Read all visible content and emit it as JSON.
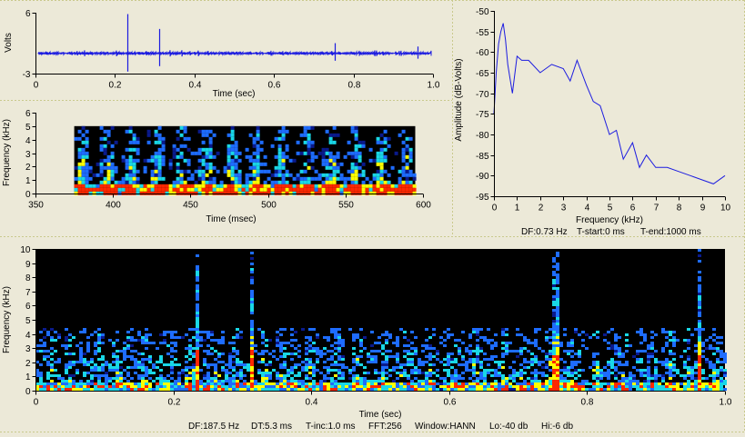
{
  "colors": {
    "background": "#ece9d8",
    "trace": "#1c1ce0",
    "spectrogram_bg": "#000000",
    "panel_separator": "#c9c98c"
  },
  "chart_data": [
    {
      "id": "waveform",
      "type": "line",
      "xlabel": "Time (sec)",
      "ylabel": "Volts",
      "xlim": [
        0,
        1
      ],
      "ylim": [
        -3,
        6
      ],
      "xticks": [
        0,
        0.2,
        0.4,
        0.6,
        0.8,
        1.0
      ],
      "xtick_labels": [
        "0",
        "0.2",
        "0.4",
        "0.6",
        "0.8",
        "1.0"
      ],
      "yticks": [
        6,
        -3
      ],
      "ytick_labels": [
        "6",
        "-3"
      ],
      "baseline": 0,
      "events": [
        {
          "t": 0.232,
          "max": 5.8,
          "min": -2.7
        },
        {
          "t": 0.312,
          "max": 3.6,
          "min": -1.9
        },
        {
          "t": 0.752,
          "max": 1.5,
          "min": -1.1
        },
        {
          "t": 0.96,
          "max": 1.0,
          "min": -0.8
        }
      ]
    },
    {
      "id": "spectrogram-zoom",
      "type": "heatmap",
      "xlabel": "Time (msec)",
      "ylabel": "Frequency (kHz)",
      "xlim": [
        350,
        600
      ],
      "ylim": [
        0,
        6
      ],
      "xticks": [
        350,
        400,
        450,
        500,
        550,
        600
      ],
      "xtick_labels": [
        "350",
        "400",
        "450",
        "500",
        "550",
        "600"
      ],
      "yticks": [
        0,
        1,
        2,
        3,
        4,
        5,
        6
      ],
      "ytick_labels": [
        "0",
        "1",
        "2",
        "3",
        "4",
        "5",
        "6"
      ],
      "data_extent_x": [
        375,
        595
      ],
      "data_extent_y": [
        0,
        5
      ],
      "colormap": [
        "#000000",
        "#0a1a8c",
        "#1e6cff",
        "#19d7e6",
        "#ffff00",
        "#ff2800"
      ]
    },
    {
      "id": "spectrum",
      "type": "line",
      "xlabel": "Frequency (kHz)",
      "ylabel": "Amplitude (dB-Volts)",
      "xlim": [
        0,
        10
      ],
      "ylim": [
        -95,
        -50
      ],
      "xticks": [
        0,
        1,
        2,
        3,
        4,
        5,
        6,
        7,
        8,
        9,
        10
      ],
      "xtick_labels": [
        "0",
        "1",
        "2",
        "3",
        "4",
        "5",
        "6",
        "7",
        "8",
        "9",
        "10"
      ],
      "yticks": [
        -50,
        -55,
        -60,
        -65,
        -70,
        -75,
        -80,
        -85,
        -90,
        -95
      ],
      "ytick_labels": [
        "-50",
        "-55",
        "-60",
        "-65",
        "-70",
        "-75",
        "-80",
        "-85",
        "-90",
        "-95"
      ],
      "x": [
        0,
        0.1,
        0.2,
        0.3,
        0.4,
        0.5,
        0.6,
        0.8,
        1.0,
        1.2,
        1.5,
        2.0,
        2.5,
        3.0,
        3.3,
        3.6,
        4.0,
        4.3,
        4.6,
        5.0,
        5.3,
        5.6,
        6.0,
        6.3,
        6.6,
        7.0,
        7.5,
        8.0,
        8.5,
        9.0,
        9.5,
        10.0
      ],
      "y": [
        -75,
        -65,
        -58,
        -55,
        -53,
        -57,
        -63,
        -70,
        -61,
        -62,
        -62,
        -65,
        -63,
        -64,
        -67,
        -62,
        -68,
        -72,
        -73,
        -80,
        -79,
        -86,
        -82,
        -88,
        -85,
        -88,
        -88,
        -89,
        -90,
        -91,
        -92,
        -90
      ],
      "footer": {
        "df": "DF:0.73 Hz",
        "tstart": "T-start:0 ms",
        "tend": "T-end:1000 ms"
      }
    },
    {
      "id": "spectrogram-full",
      "type": "heatmap",
      "xlabel": "Time (sec)",
      "ylabel": "Frequency (kHz)",
      "xlim": [
        0,
        1
      ],
      "ylim": [
        0,
        10
      ],
      "xticks": [
        0,
        0.2,
        0.4,
        0.6,
        0.8,
        1.0
      ],
      "xtick_labels": [
        "0",
        "0.2",
        "0.4",
        "0.6",
        "0.8",
        "1.0"
      ],
      "yticks": [
        0,
        1,
        2,
        3,
        4,
        5,
        6,
        7,
        8,
        9,
        10
      ],
      "ytick_labels": [
        "0",
        "1",
        "2",
        "3",
        "4",
        "5",
        "6",
        "7",
        "8",
        "9",
        "10"
      ],
      "tall_events_sec": [
        0.232,
        0.312,
        0.752,
        0.96
      ],
      "colormap": [
        "#000000",
        "#0a1a8c",
        "#1e6cff",
        "#19d7e6",
        "#ffff00",
        "#ff2800"
      ],
      "footer": {
        "df": "DF:187.5 Hz",
        "dt": "DT:5.3 ms",
        "tinc": "T-inc:1.0 ms",
        "fft": "FFT:256",
        "window": "Window:HANN",
        "lo": "Lo:-40 db",
        "hi": "Hi:-6 db"
      }
    }
  ]
}
